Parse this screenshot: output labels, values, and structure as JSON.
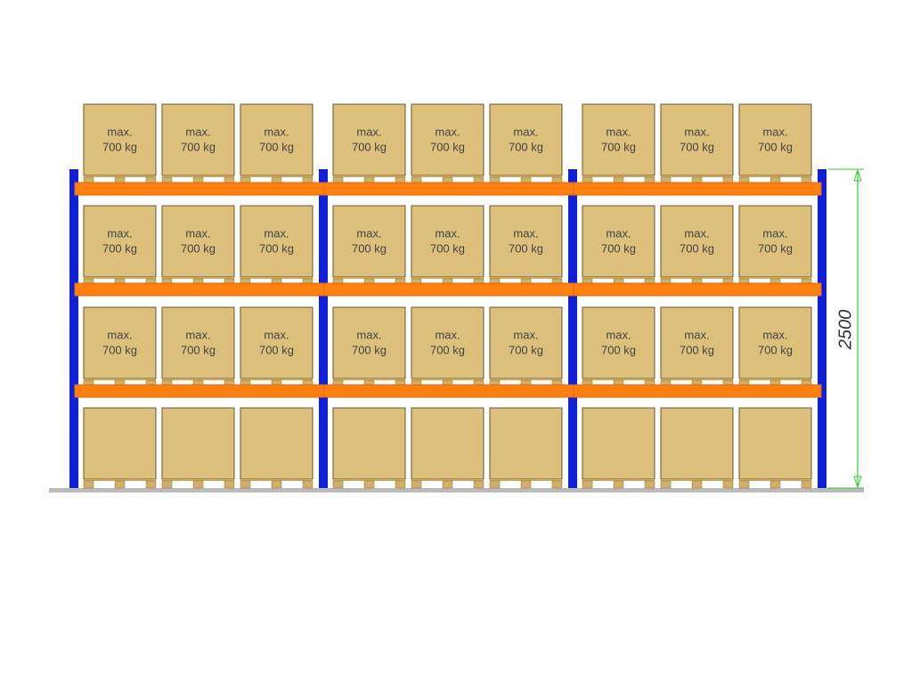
{
  "levels": [
    {
      "pallets": [
        {
          "label": [
            "max.",
            "700 kg"
          ]
        },
        {
          "label": [
            "max.",
            "700 kg"
          ]
        },
        {
          "label": [
            "max.",
            "700 kg"
          ]
        },
        {
          "label": [
            "max.",
            "700 kg"
          ]
        },
        {
          "label": [
            "max.",
            "700 kg"
          ]
        },
        {
          "label": [
            "max.",
            "700 kg"
          ]
        },
        {
          "label": [
            "max.",
            "700 kg"
          ]
        },
        {
          "label": [
            "max.",
            "700 kg"
          ]
        },
        {
          "label": [
            "max.",
            "700 kg"
          ]
        }
      ]
    },
    {
      "pallets": [
        {
          "label": [
            "max.",
            "700 kg"
          ]
        },
        {
          "label": [
            "max.",
            "700 kg"
          ]
        },
        {
          "label": [
            "max.",
            "700 kg"
          ]
        },
        {
          "label": [
            "max.",
            "700 kg"
          ]
        },
        {
          "label": [
            "max.",
            "700 kg"
          ]
        },
        {
          "label": [
            "max.",
            "700 kg"
          ]
        },
        {
          "label": [
            "max.",
            "700 kg"
          ]
        },
        {
          "label": [
            "max.",
            "700 kg"
          ]
        },
        {
          "label": [
            "max.",
            "700 kg"
          ]
        }
      ]
    },
    {
      "pallets": [
        {
          "label": [
            "max.",
            "700 kg"
          ]
        },
        {
          "label": [
            "max.",
            "700 kg"
          ]
        },
        {
          "label": [
            "max.",
            "700 kg"
          ]
        },
        {
          "label": [
            "max.",
            "700 kg"
          ]
        },
        {
          "label": [
            "max.",
            "700 kg"
          ]
        },
        {
          "label": [
            "max.",
            "700 kg"
          ]
        },
        {
          "label": [
            "max.",
            "700 kg"
          ]
        },
        {
          "label": [
            "max.",
            "700 kg"
          ]
        },
        {
          "label": [
            "max.",
            "700 kg"
          ]
        }
      ]
    }
  ],
  "dimension": "2500"
}
